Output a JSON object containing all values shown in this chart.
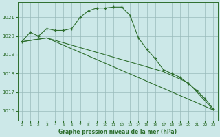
{
  "title": "Graphe pression niveau de la mer (hPa)",
  "background_color": "#cce8e8",
  "grid_color": "#99bbbb",
  "line_color": "#2d6e2d",
  "ylim": [
    1015.5,
    1021.8
  ],
  "yticks": [
    1016,
    1017,
    1018,
    1019,
    1020,
    1021
  ],
  "xticks": [
    0,
    1,
    2,
    3,
    4,
    5,
    6,
    7,
    8,
    9,
    10,
    11,
    12,
    13,
    14,
    15,
    16,
    17,
    18,
    19,
    20,
    21,
    22,
    23
  ],
  "series": [
    {
      "x": [
        0,
        1,
        2,
        3,
        4,
        5,
        6,
        7,
        8,
        9,
        10,
        11,
        12,
        13,
        14,
        15,
        16,
        17,
        18,
        19,
        20,
        21,
        22,
        23
      ],
      "y": [
        1019.7,
        1020.2,
        1020.0,
        1020.4,
        1020.3,
        1020.3,
        1020.4,
        1021.0,
        1021.35,
        1021.5,
        1021.5,
        1021.55,
        1021.55,
        1021.1,
        1019.9,
        1019.3,
        1018.8,
        1018.2,
        1018.0,
        1017.8,
        1017.45,
        1017.1,
        1016.65,
        1016.1
      ],
      "has_markers": true
    },
    {
      "x": [
        0,
        3,
        23
      ],
      "y": [
        1019.7,
        1019.9,
        1016.05
      ],
      "has_markers": false
    },
    {
      "x": [
        0,
        3,
        17,
        20,
        23
      ],
      "y": [
        1019.7,
        1019.9,
        1018.1,
        1017.5,
        1016.05
      ],
      "has_markers": false
    }
  ]
}
